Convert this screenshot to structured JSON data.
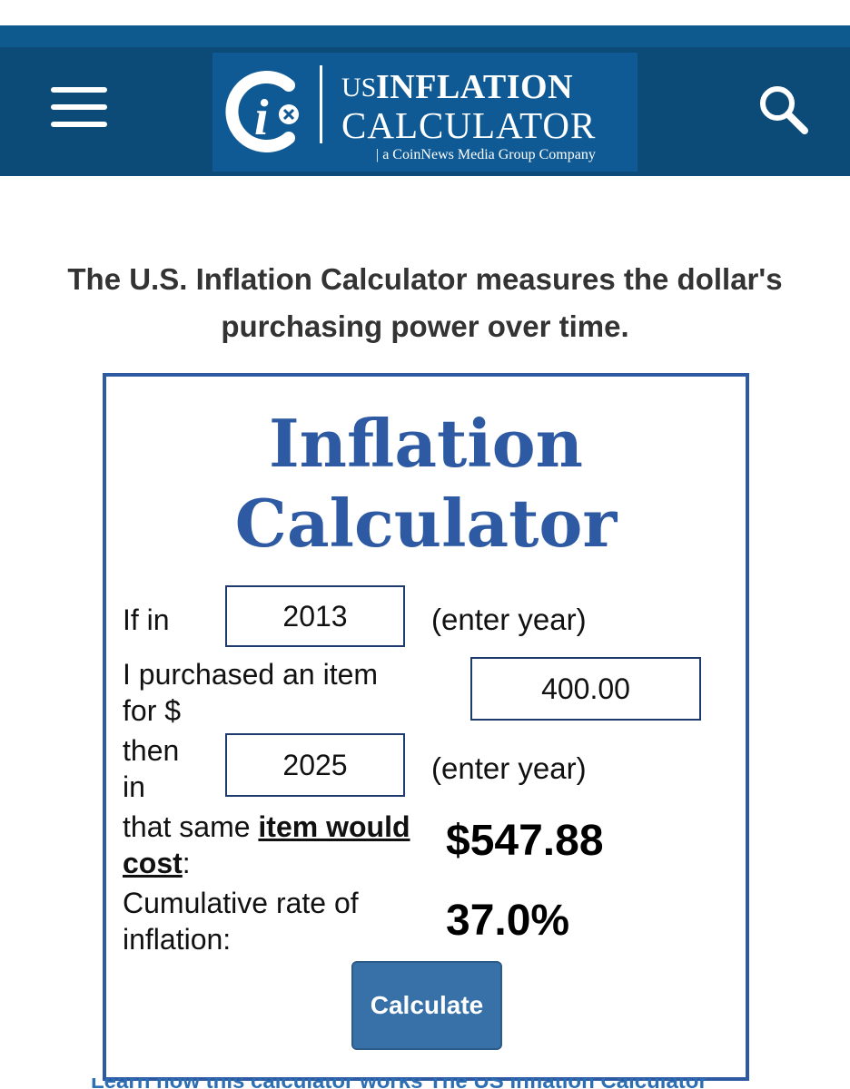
{
  "header": {
    "logo": {
      "mark_letter": "i",
      "us": "US",
      "word1": "INFLATION",
      "word2": "CALCULATOR",
      "tagline": "| a CoinNews Media Group Company"
    },
    "menu_icon": "hamburger-menu-icon",
    "search_icon": "search-icon",
    "colors": {
      "bar": "#0c4b78",
      "logo_bg": "#0f5a94"
    }
  },
  "intro": {
    "text": "The U.S. Inflation Calculator measures the dollar's purchasing power over time."
  },
  "calculator": {
    "title_line1": "Inflation",
    "title_line2": "Calculator",
    "if_in_label": "If in",
    "start_year": "2013",
    "enter_year_hint_1": "(enter year)",
    "purchased_label_1": "I purchased an item",
    "purchased_label_2": "for $",
    "amount": "400.00",
    "then_label_1": "then",
    "then_label_2": "in",
    "end_year": "2025",
    "enter_year_hint_2": "(enter year)",
    "cost_label_prefix": "that same ",
    "cost_link_1": "item would",
    "cost_link_2": "cost",
    "cost_label_suffix": ":",
    "cost_result": "$547.88",
    "rate_label_1": "Cumulative rate of",
    "rate_label_2": "inflation:",
    "rate_result": "37.0%",
    "calculate_button": "Calculate",
    "accent_color": "#2d5aa3"
  },
  "footer_partial": {
    "text": "Learn how this calculator works  The US Inflation Calculator"
  }
}
